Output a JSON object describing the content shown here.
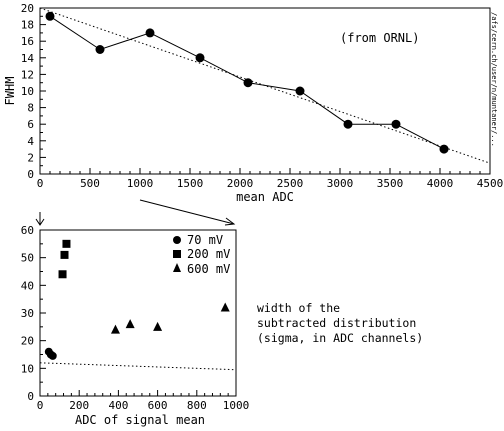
{
  "chart_data": [
    {
      "type": "line",
      "xlabel": "mean ADC",
      "ylabel": "FWHM",
      "annotation": "(from ORNL)",
      "side_label": "/afs/cern.ch/user/n/muntaner/...",
      "xlim": [
        0,
        4500
      ],
      "ylim": [
        0,
        20
      ],
      "x_ticks": [
        0,
        500,
        1000,
        1500,
        2000,
        2500,
        3000,
        3500,
        4000,
        4500
      ],
      "x_tick_labels": [
        "0",
        "500",
        "1000",
        "1500",
        "2000",
        "2500",
        "3000",
        "3500",
        "4000",
        "4500"
      ],
      "y_ticks": [
        0,
        2,
        4,
        6,
        8,
        10,
        12,
        14,
        16,
        18,
        20
      ],
      "y_tick_labels": [
        "0",
        "2",
        "4",
        "6",
        "8",
        "10",
        "12",
        "14",
        "16",
        "18",
        "20"
      ],
      "grid": false,
      "series": [
        {
          "style": "solid-line-with-circles",
          "x": [
            100,
            600,
            1100,
            1600,
            2080,
            2600,
            3080,
            3560,
            4040
          ],
          "y": [
            19,
            15,
            17,
            14,
            11,
            10,
            6,
            6,
            3
          ]
        },
        {
          "style": "dotted-fit",
          "x": [
            0,
            4500
          ],
          "y": [
            20,
            1.3
          ]
        }
      ],
      "zoom_range": [
        0,
        1000
      ]
    },
    {
      "type": "scatter",
      "xlabel": "ADC of signal mean",
      "ylabel": "",
      "xlim": [
        0,
        1000
      ],
      "ylim": [
        0,
        60
      ],
      "x_ticks": [
        0,
        200,
        400,
        600,
        800,
        1000
      ],
      "x_tick_labels": [
        "0",
        "200",
        "400",
        "600",
        "800",
        "1000"
      ],
      "y_ticks": [
        0,
        10,
        20,
        30,
        40,
        50,
        60
      ],
      "y_tick_labels": [
        "0",
        "10",
        "20",
        "30",
        "40",
        "50",
        "60"
      ],
      "grid": false,
      "legend_position": "top-right",
      "series": [
        {
          "name": "70 mV",
          "marker": "circle",
          "x": [
            45,
            55,
            65
          ],
          "y": [
            16,
            15,
            14.5
          ]
        },
        {
          "name": "200 mV",
          "marker": "square",
          "x": [
            115,
            125,
            135
          ],
          "y": [
            44,
            51,
            55
          ]
        },
        {
          "name": "600 mV",
          "marker": "triangle",
          "x": [
            385,
            460,
            600,
            945
          ],
          "y": [
            24,
            26,
            25,
            32
          ]
        },
        {
          "style": "dotted-line",
          "x": [
            0,
            1000
          ],
          "y": [
            12,
            9.5
          ]
        }
      ],
      "note_lines": [
        "width of the",
        "subtracted distribution",
        "(sigma, in ADC channels)"
      ]
    }
  ]
}
